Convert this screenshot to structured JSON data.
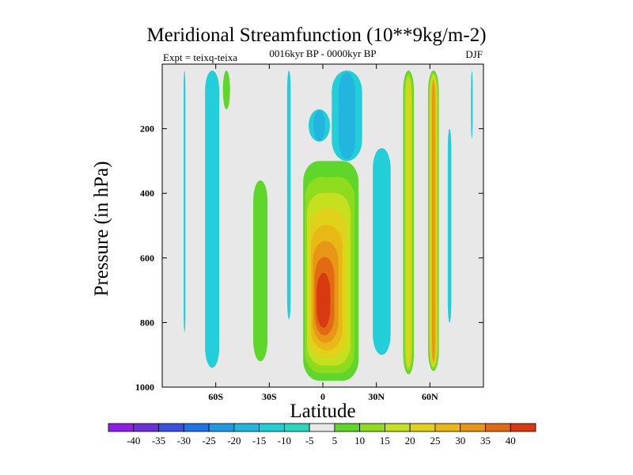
{
  "chart_data": {
    "type": "contour",
    "title": "Meridional Streamfunction (10**9kg/m-2)",
    "subtitle": "0016kyr BP - 0000kyr BP",
    "left_label": "Expt = teixq-teixa",
    "right_label": "DJF",
    "xlabel": "Latitude",
    "ylabel": "Pressure (in hPa)",
    "xlim": [
      -90,
      90
    ],
    "ylim": [
      0,
      1000
    ],
    "y_inverted": true,
    "x_ticks": [
      {
        "value": -60,
        "label": "60S"
      },
      {
        "value": -30,
        "label": "30S"
      },
      {
        "value": 0,
        "label": "0"
      },
      {
        "value": 30,
        "label": "30N"
      },
      {
        "value": 60,
        "label": "60N"
      }
    ],
    "y_ticks": [
      {
        "value": 200,
        "label": "200"
      },
      {
        "value": 400,
        "label": "400"
      },
      {
        "value": 600,
        "label": "600"
      },
      {
        "value": 800,
        "label": "800"
      },
      {
        "value": 1000,
        "label": "1000"
      }
    ],
    "background_color": "#e8e8e8",
    "contour_levels": [
      {
        "min": -45,
        "max": -40,
        "color": "#8f1ee6"
      },
      {
        "min": -40,
        "max": -35,
        "color": "#6b30d9"
      },
      {
        "min": -35,
        "max": -30,
        "color": "#3c4fe0"
      },
      {
        "min": -30,
        "max": -25,
        "color": "#1f73e8"
      },
      {
        "min": -25,
        "max": -20,
        "color": "#1f9be6"
      },
      {
        "min": -20,
        "max": -15,
        "color": "#22b5e0"
      },
      {
        "min": -15,
        "max": -10,
        "color": "#22cfd8"
      },
      {
        "min": -10,
        "max": -5,
        "color": "#2ad8c0"
      },
      {
        "min": -5,
        "max": 5,
        "color": "#e8e8e8"
      },
      {
        "min": 5,
        "max": 10,
        "color": "#5fd62a"
      },
      {
        "min": 10,
        "max": 15,
        "color": "#8fdc1f"
      },
      {
        "min": 15,
        "max": 20,
        "color": "#c5e01f"
      },
      {
        "min": 20,
        "max": 25,
        "color": "#e0d21a"
      },
      {
        "min": 25,
        "max": 30,
        "color": "#e8b815"
      },
      {
        "min": 30,
        "max": 35,
        "color": "#e89615"
      },
      {
        "min": 35,
        "max": 40,
        "color": "#e26a12"
      },
      {
        "min": 40,
        "max": 45,
        "color": "#d83a10"
      }
    ],
    "colorbar_labels": [
      "-40",
      "-35",
      "-30",
      "-25",
      "-20",
      "-15",
      "-10",
      "-5",
      "5",
      "10",
      "15",
      "20",
      "25",
      "30",
      "35",
      "40"
    ],
    "features": [
      {
        "name": "column-78s",
        "lat": [
          -78,
          -77
        ],
        "p": [
          20,
          830
        ],
        "levels": [
          -10
        ]
      },
      {
        "name": "column-63s",
        "lat": [
          -66,
          -58
        ],
        "p": [
          20,
          940
        ],
        "levels": [
          -10
        ]
      },
      {
        "name": "column-56s",
        "lat": [
          -56,
          -52
        ],
        "p": [
          20,
          140
        ],
        "levels": [
          10
        ]
      },
      {
        "name": "column-35s",
        "lat": [
          -39,
          -31
        ],
        "p": [
          360,
          920
        ],
        "levels": [
          10
        ]
      },
      {
        "name": "column-18s",
        "lat": [
          -20,
          -18
        ],
        "p": [
          20,
          790
        ],
        "levels": [
          -10
        ]
      },
      {
        "name": "upper-minimum-west",
        "lat": [
          -8,
          4
        ],
        "p": [
          140,
          240
        ],
        "levels": [
          -10,
          -15
        ]
      },
      {
        "name": "upper-minimum-east",
        "lat": [
          5,
          22
        ],
        "p": [
          20,
          300
        ],
        "levels": [
          -10,
          -15
        ]
      },
      {
        "name": "tropical-cell",
        "lat": [
          -11,
          20
        ],
        "p": [
          300,
          980
        ],
        "levels": [
          10,
          15,
          20,
          25,
          30,
          35,
          40,
          45
        ],
        "peak_lat": -1,
        "peak_p": 740
      },
      {
        "name": "column-31n",
        "lat": [
          28,
          38
        ],
        "p": [
          260,
          900
        ],
        "levels": [
          -10
        ]
      },
      {
        "name": "column-48n",
        "lat": [
          45,
          51
        ],
        "p": [
          20,
          960
        ],
        "levels": [
          10,
          15,
          20,
          25
        ]
      },
      {
        "name": "column-63n",
        "lat": [
          59,
          65
        ],
        "p": [
          20,
          950
        ],
        "levels": [
          10,
          15,
          20,
          25,
          30,
          35
        ]
      },
      {
        "name": "column-72n",
        "lat": [
          70,
          72
        ],
        "p": [
          200,
          800
        ],
        "levels": [
          -10
        ]
      },
      {
        "name": "column-84n",
        "lat": [
          83,
          84
        ],
        "p": [
          20,
          230
        ],
        "levels": [
          -10
        ]
      }
    ]
  }
}
